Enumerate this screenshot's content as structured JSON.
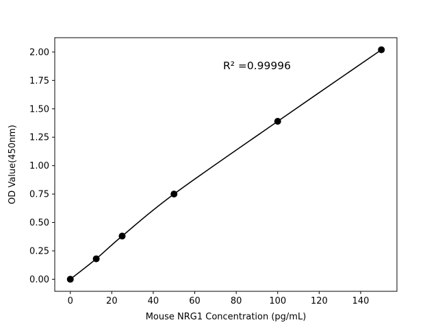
{
  "chart_data": {
    "type": "scatter",
    "title": "",
    "xlabel": "Mouse NRG1 Concentration (pg/mL)",
    "ylabel": "OD Value(450nm)",
    "x": [
      0,
      12.5,
      25,
      50,
      100,
      150
    ],
    "y": [
      0.0,
      0.18,
      0.38,
      0.75,
      1.39,
      2.02
    ],
    "annotation": {
      "text": "R² =0.99996",
      "x": 90,
      "y": 1.85
    },
    "xlim": [
      -7.5,
      157.5
    ],
    "ylim": [
      -0.106,
      2.126
    ],
    "xtick_values": [
      0,
      20,
      40,
      60,
      80,
      100,
      120,
      140
    ],
    "xtick_labels": [
      "0",
      "20",
      "40",
      "60",
      "80",
      "100",
      "120",
      "140"
    ],
    "ytick_values": [
      0.0,
      0.25,
      0.5,
      0.75,
      1.0,
      1.25,
      1.5,
      1.75,
      2.0
    ],
    "ytick_labels": [
      "0.00",
      "0.25",
      "0.50",
      "0.75",
      "1.00",
      "1.25",
      "1.50",
      "1.75",
      "2.00"
    ],
    "marker_color": "#000000",
    "line_color": "#000000",
    "background": "#ffffff",
    "grid": false,
    "legend_position": "none"
  }
}
